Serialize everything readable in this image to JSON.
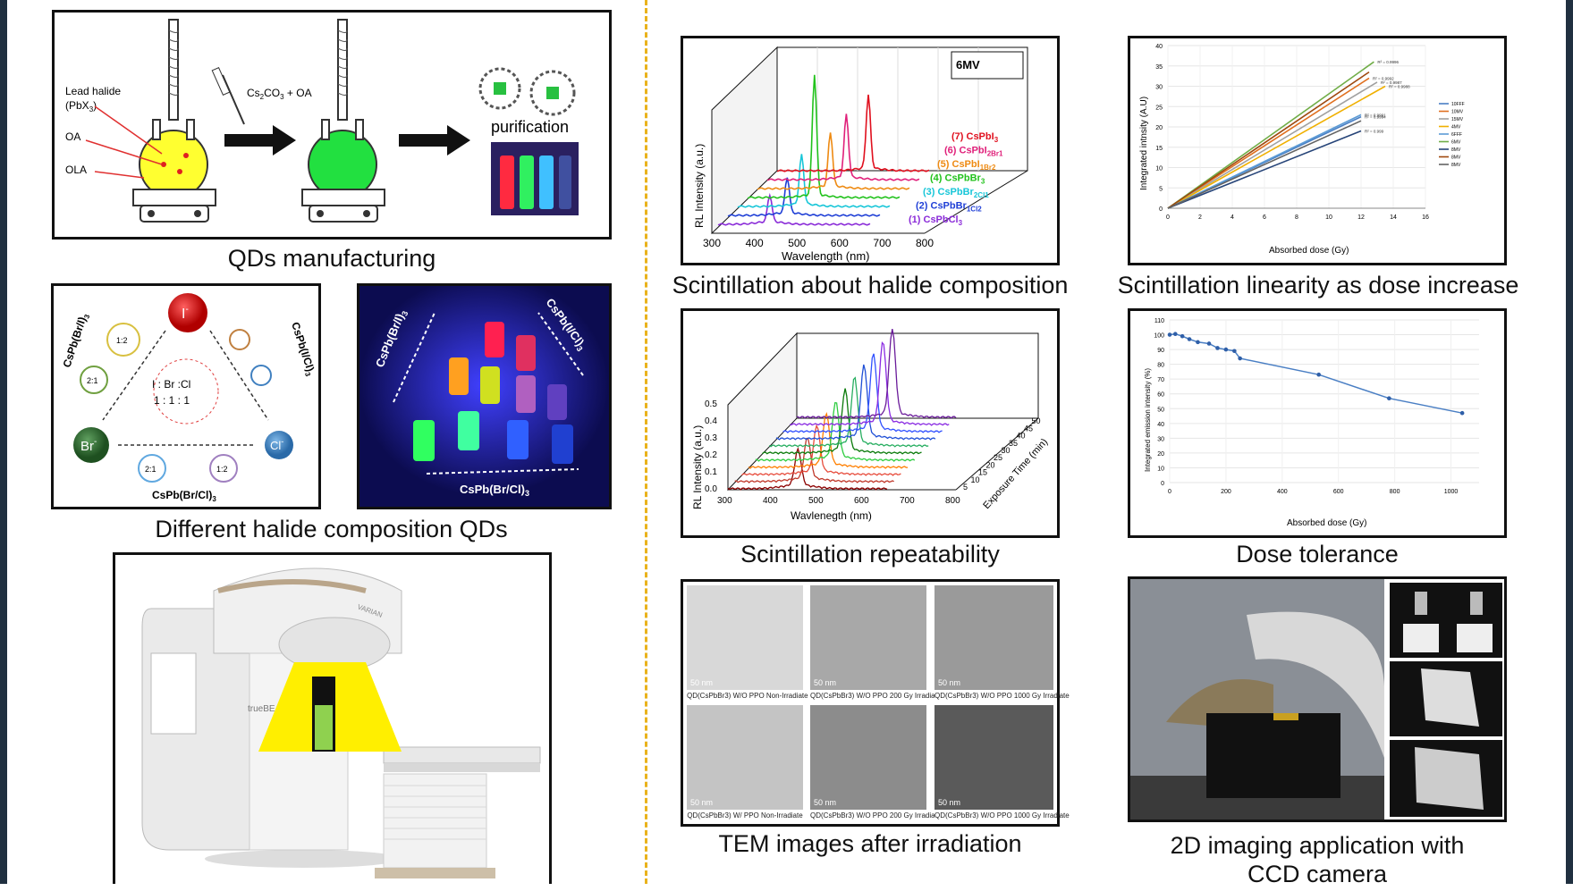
{
  "colors": {
    "divider": "#e9b21c",
    "beam": "#ffef00",
    "vial_green": "#8fd14f",
    "frame": "#111111"
  },
  "qds_manufacturing": {
    "caption": "QDs manufacturing",
    "lead_halide_label": "Lead halide",
    "pbx3_label": "(PbX",
    "pbx3_sub": "3",
    "pbx3_end": ")",
    "oa_label": "OA",
    "ola_label": "OLA",
    "reagent": "Cs",
    "reagent_sub": "2",
    "reagent_rest": "CO",
    "reagent_sub2": "3",
    "reagent_end": " + OA",
    "purification_label": "purification",
    "arrow_icon": "right-arrow-icon"
  },
  "halide_diagram": {
    "caption": "Different halide composition QDs",
    "ion_i": "I",
    "ion_br": "Br",
    "ion_cl": "Cl",
    "ion_charge": "-",
    "ratio_center": "I : Br :Cl",
    "ratio_center_values": "1 :  1 :  1",
    "left_formula": "CsPb(Br/I)",
    "right_formula": "CsPb(I/Cl)",
    "bottom_formula": "CsPb(Br/Cl)",
    "formula_sub": "3",
    "ratio_1_2": "1:2",
    "ratio_2_1": "2:1",
    "photo_left_formula": "CsPb(Br/I)",
    "photo_right_formula": "CsPb(I/Cl)",
    "photo_bottom_formula": "CsPb(Br/Cl)"
  },
  "linac": {
    "brand_label": "trueBEAM",
    "vendor_label": "VARIAN"
  },
  "scintillation_halide": {
    "caption": "Scintillation about halide composition",
    "energy_label": "6MV",
    "ylabel": "RL Intensity (a.u.)",
    "xlabel": "Wavelength (nm)",
    "x_ticks": [
      "300",
      "400",
      "500",
      "600",
      "700",
      "800"
    ],
    "series": [
      {
        "label": "(7) CsPbI",
        "sub": "3",
        "color": "#e0101e"
      },
      {
        "label": "(6) CsPbI",
        "sub": "2Br1",
        "color": "#e0207a"
      },
      {
        "label": "(5) CsPbI",
        "sub": "1Br2",
        "color": "#ee8a12"
      },
      {
        "label": "(4) CsPbBr",
        "sub": "3",
        "color": "#22c21c"
      },
      {
        "label": "(3) CsPbBr",
        "sub": "2Cl1",
        "color": "#17c6d8"
      },
      {
        "label": "(2) CsPbBr",
        "sub": "1Cl2",
        "color": "#1f3fd6"
      },
      {
        "label": "(1) CsPbCl",
        "sub": "3",
        "color": "#8a2bd8"
      }
    ]
  },
  "linearity": {
    "caption": "Scintillation linearity as dose increase",
    "ylabel": "Integrated intnsity (A.U)",
    "xlabel": "Absorbed dose (Gy)",
    "y_ticks": [
      "0",
      "5",
      "10",
      "15",
      "20",
      "25",
      "30",
      "35",
      "40"
    ],
    "x_ticks": [
      "0",
      "2",
      "4",
      "6",
      "8",
      "10",
      "12",
      "14",
      "16"
    ],
    "chart_data": {
      "type": "line",
      "xlim": [
        0,
        16
      ],
      "ylim": [
        0,
        40
      ],
      "series": [
        {
          "name": "10FFF",
          "color": "#4a7fc4",
          "x": [
            0,
            12
          ],
          "y": [
            0,
            22.5
          ],
          "r2": "R² = 0.9994"
        },
        {
          "name": "10MV",
          "color": "#e07020",
          "x": [
            0,
            12.5
          ],
          "y": [
            0,
            32
          ],
          "r2": "R² = 0.9992"
        },
        {
          "name": "15MV",
          "color": "#a0a0a0",
          "x": [
            0,
            13
          ],
          "y": [
            0,
            31
          ],
          "r2": "R² = 0.9987"
        },
        {
          "name": "4MV",
          "color": "#f0b000",
          "x": [
            0,
            13.5
          ],
          "y": [
            0,
            30
          ],
          "r2": "R² = 0.9988"
        },
        {
          "name": "6FFF",
          "color": "#5b9bd5",
          "x": [
            0,
            12
          ],
          "y": [
            0,
            23
          ],
          "r2": "R² = 0.9991"
        },
        {
          "name": "6MV",
          "color": "#70ad47",
          "x": [
            0,
            12.8
          ],
          "y": [
            0,
            36
          ],
          "r2": "R² = 0.9996"
        },
        {
          "name": "8MV",
          "color": "#264478",
          "x": [
            0,
            12
          ],
          "y": [
            0,
            19
          ],
          "r2": "R² = 0.999"
        },
        {
          "name": "8MV",
          "color": "#9e480e",
          "x": [
            0,
            12.5
          ],
          "y": [
            0,
            33.5
          ],
          "r2": ""
        },
        {
          "name": "8MV",
          "color": "#636363",
          "x": [
            0,
            12
          ],
          "y": [
            0,
            21.5
          ],
          "r2": ""
        }
      ]
    }
  },
  "repeatability": {
    "caption": "Scintillation repeatability",
    "ylabel": "RL Intensity (a.u.)",
    "xlabel": "Wavlenegth (nm)",
    "zlabel": "Exposure Time (min)",
    "x_ticks": [
      "300",
      "400",
      "500",
      "600",
      "700",
      "800"
    ],
    "y_ticks": [
      "0.0",
      "0.1",
      "0.2",
      "0.3",
      "0.4",
      "0.5"
    ],
    "z_ticks": [
      "5",
      "10",
      "15",
      "20",
      "25",
      "30",
      "35",
      "40",
      "45",
      "50"
    ]
  },
  "dose_tolerance": {
    "caption": "Dose tolerance",
    "ylabel": "Integrated emission intensity (%)",
    "xlabel": "Absorbed dose (Gy)",
    "y_ticks": [
      "0",
      "10",
      "20",
      "30",
      "40",
      "50",
      "60",
      "70",
      "80",
      "90",
      "100",
      "110"
    ],
    "x_ticks": [
      "0",
      "200",
      "400",
      "600",
      "800",
      "1000"
    ],
    "chart_data": {
      "type": "line",
      "xlim": [
        0,
        1100
      ],
      "ylim": [
        0,
        110
      ],
      "x": [
        0,
        20,
        45,
        70,
        100,
        140,
        170,
        200,
        230,
        250,
        530,
        780,
        1040
      ],
      "y": [
        100,
        100.5,
        99,
        97,
        95,
        94,
        91,
        90,
        89,
        84,
        73,
        57,
        47
      ]
    }
  },
  "tem": {
    "caption": "TEM images after irradiation",
    "scale": "50 nm",
    "labels": [
      "QD(CsPbBr3) W/O PPO Non-Irradiate",
      "QD(CsPbBr3) W/O PPO 200 Gy Irradiate",
      "QD(CsPbBr3) W/O PPO 1000 Gy Irradiate",
      "QD(CsPbBr3) W/ PPO Non-Irradiate",
      "QD(CsPbBr3) W/O PPO 200 Gy Irradiate",
      "QD(CsPbBr3) W/O PPO 1000 Gy Irradiate"
    ]
  },
  "imaging": {
    "caption_line1": "2D imaging application with",
    "caption_line2": "CCD camera"
  }
}
